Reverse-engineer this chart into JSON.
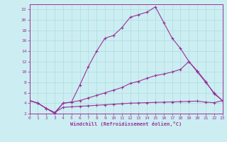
{
  "xlabel": "Windchill (Refroidissement éolien,°C)",
  "bg_color": "#cceef2",
  "grid_color": "#aadddd",
  "line_color": "#993399",
  "xmin": 0,
  "xmax": 23,
  "ymin": 2,
  "ymax": 23,
  "yticks": [
    2,
    4,
    6,
    8,
    10,
    12,
    14,
    16,
    18,
    20,
    22
  ],
  "xticks": [
    0,
    1,
    2,
    3,
    4,
    5,
    6,
    7,
    8,
    9,
    10,
    11,
    12,
    13,
    14,
    15,
    16,
    17,
    18,
    19,
    20,
    21,
    22,
    23
  ],
  "line1_x": [
    0,
    1,
    2,
    3,
    4,
    5,
    6,
    7,
    8,
    9,
    10,
    11,
    12,
    13,
    14,
    15,
    16,
    17,
    18,
    19,
    20,
    21,
    22,
    23
  ],
  "line1_y": [
    4.5,
    4.0,
    3.0,
    2.0,
    4.0,
    4.2,
    7.5,
    11.0,
    14.0,
    16.5,
    17.0,
    18.5,
    20.5,
    21.0,
    21.5,
    22.5,
    19.5,
    16.5,
    14.5,
    12.0,
    10.0,
    8.0,
    6.0,
    4.5
  ],
  "line2_x": [
    0,
    1,
    2,
    3,
    4,
    5,
    6,
    7,
    8,
    9,
    10,
    11,
    12,
    13,
    14,
    15,
    16,
    17,
    18,
    19,
    20,
    21,
    22,
    23
  ],
  "line2_y": [
    4.5,
    4.0,
    3.0,
    2.2,
    4.0,
    4.2,
    4.5,
    5.0,
    5.5,
    6.0,
    6.5,
    7.0,
    7.8,
    8.2,
    8.8,
    9.3,
    9.6,
    10.0,
    10.5,
    12.0,
    10.2,
    8.2,
    5.8,
    4.5
  ],
  "line3_x": [
    0,
    1,
    2,
    3,
    4,
    5,
    6,
    7,
    8,
    9,
    10,
    11,
    12,
    13,
    14,
    15,
    16,
    17,
    18,
    19,
    20,
    21,
    22,
    23
  ],
  "line3_y": [
    4.5,
    4.0,
    3.0,
    2.2,
    3.2,
    3.3,
    3.4,
    3.5,
    3.6,
    3.7,
    3.8,
    3.9,
    4.0,
    4.05,
    4.1,
    4.15,
    4.2,
    4.25,
    4.3,
    4.35,
    4.4,
    4.2,
    4.1,
    4.5
  ]
}
